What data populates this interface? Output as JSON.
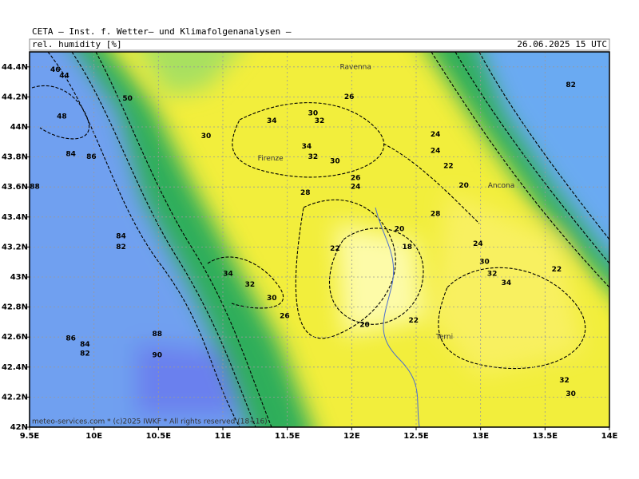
{
  "header": {
    "source": "CETA — Inst. f. Wetter— und Klimafolgenanalysen —",
    "field": "rel. humidity [%]",
    "valid": "26.06.2025 15 UTC"
  },
  "map": {
    "xlim": [
      9.5,
      14
    ],
    "ylim": [
      42,
      44.5
    ],
    "grid": true,
    "xticks": [
      {
        "value": 9.5,
        "label": "9.5E"
      },
      {
        "value": 10,
        "label": "10E"
      },
      {
        "value": 10.5,
        "label": "10.5E"
      },
      {
        "value": 11,
        "label": "11E"
      },
      {
        "value": 11.5,
        "label": "11.5E"
      },
      {
        "value": 12,
        "label": "12E"
      },
      {
        "value": 12.5,
        "label": "12.5E"
      },
      {
        "value": 13,
        "label": "13E"
      },
      {
        "value": 13.5,
        "label": "13.5E"
      },
      {
        "value": 14,
        "label": "14E"
      }
    ],
    "yticks": [
      {
        "value": 42,
        "label": "42N"
      },
      {
        "value": 42.2,
        "label": "42.2N"
      },
      {
        "value": 42.4,
        "label": "42.4N"
      },
      {
        "value": 42.6,
        "label": "42.6N"
      },
      {
        "value": 42.8,
        "label": "42.8N"
      },
      {
        "value": 43,
        "label": "43N"
      },
      {
        "value": 43.2,
        "label": "43.2N"
      },
      {
        "value": 43.4,
        "label": "43.4N"
      },
      {
        "value": 43.6,
        "label": "43.6N"
      },
      {
        "value": 43.8,
        "label": "43.8N"
      },
      {
        "value": 44,
        "label": "44N"
      },
      {
        "value": 44.2,
        "label": "44.2N"
      },
      {
        "value": 44.4,
        "label": "44.4N"
      }
    ],
    "places": [
      {
        "name": "Ravenna",
        "lon": 12.03,
        "lat": 44.4
      },
      {
        "name": "Firenze",
        "lon": 11.37,
        "lat": 43.79
      },
      {
        "name": "Ancona",
        "lon": 13.16,
        "lat": 43.61
      },
      {
        "name": "Terni",
        "lon": 12.72,
        "lat": 42.6
      }
    ],
    "contour_labels": [
      {
        "value": 46,
        "lon": 9.7,
        "lat": 44.38
      },
      {
        "value": 44,
        "lon": 9.77,
        "lat": 44.34
      },
      {
        "value": 50,
        "lon": 10.26,
        "lat": 44.19
      },
      {
        "value": 48,
        "lon": 9.75,
        "lat": 44.07
      },
      {
        "value": 26,
        "lon": 11.98,
        "lat": 44.2
      },
      {
        "value": 82,
        "lon": 13.7,
        "lat": 44.28
      },
      {
        "value": 30,
        "lon": 11.7,
        "lat": 44.09
      },
      {
        "value": 32,
        "lon": 11.75,
        "lat": 44.04
      },
      {
        "value": 34,
        "lon": 11.38,
        "lat": 44.04
      },
      {
        "value": 30,
        "lon": 10.87,
        "lat": 43.94
      },
      {
        "value": 34,
        "lon": 11.65,
        "lat": 43.87
      },
      {
        "value": 32,
        "lon": 11.7,
        "lat": 43.8
      },
      {
        "value": 30,
        "lon": 11.87,
        "lat": 43.77
      },
      {
        "value": 24,
        "lon": 12.65,
        "lat": 43.95
      },
      {
        "value": 24,
        "lon": 12.65,
        "lat": 43.84
      },
      {
        "value": 22,
        "lon": 12.75,
        "lat": 43.74
      },
      {
        "value": 20,
        "lon": 12.87,
        "lat": 43.61
      },
      {
        "value": 26,
        "lon": 12.03,
        "lat": 43.66
      },
      {
        "value": 24,
        "lon": 12.03,
        "lat": 43.6
      },
      {
        "value": 28,
        "lon": 11.64,
        "lat": 43.56
      },
      {
        "value": 28,
        "lon": 12.65,
        "lat": 43.42
      },
      {
        "value": 20,
        "lon": 12.37,
        "lat": 43.32
      },
      {
        "value": 18,
        "lon": 12.43,
        "lat": 43.2
      },
      {
        "value": 22,
        "lon": 11.87,
        "lat": 43.19
      },
      {
        "value": 24,
        "lon": 12.98,
        "lat": 43.22
      },
      {
        "value": 30,
        "lon": 13.03,
        "lat": 43.1
      },
      {
        "value": 32,
        "lon": 13.09,
        "lat": 43.02
      },
      {
        "value": 34,
        "lon": 13.2,
        "lat": 42.96
      },
      {
        "value": 22,
        "lon": 13.59,
        "lat": 43.05
      },
      {
        "value": 34,
        "lon": 11.04,
        "lat": 43.02
      },
      {
        "value": 32,
        "lon": 11.21,
        "lat": 42.95
      },
      {
        "value": 30,
        "lon": 11.38,
        "lat": 42.86
      },
      {
        "value": 26,
        "lon": 11.48,
        "lat": 42.74
      },
      {
        "value": 20,
        "lon": 12.1,
        "lat": 42.68
      },
      {
        "value": 22,
        "lon": 12.48,
        "lat": 42.71
      },
      {
        "value": 84,
        "lon": 10.21,
        "lat": 43.27
      },
      {
        "value": 82,
        "lon": 10.21,
        "lat": 43.2
      },
      {
        "value": 84,
        "lon": 9.82,
        "lat": 43.82
      },
      {
        "value": 86,
        "lon": 9.98,
        "lat": 43.8
      },
      {
        "value": 88,
        "lon": 9.54,
        "lat": 43.6
      },
      {
        "value": 88,
        "lon": 10.49,
        "lat": 42.62
      },
      {
        "value": 90,
        "lon": 10.49,
        "lat": 42.48
      },
      {
        "value": 84,
        "lon": 9.93,
        "lat": 42.55
      },
      {
        "value": 82,
        "lon": 9.93,
        "lat": 42.49
      },
      {
        "value": 86,
        "lon": 9.82,
        "lat": 42.59
      },
      {
        "value": 32,
        "lon": 13.65,
        "lat": 42.31
      },
      {
        "value": 30,
        "lon": 13.7,
        "lat": 42.22
      }
    ],
    "copyright": "meteo-services.com * (c)2025 IWKF * All rights reserved (18+16)"
  }
}
